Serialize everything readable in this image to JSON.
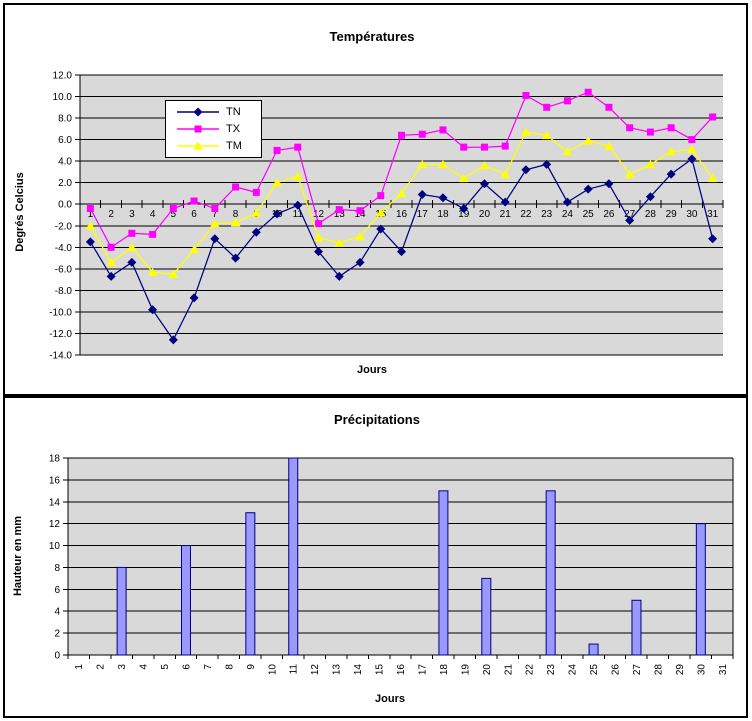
{
  "window": {
    "background": "#ffffff"
  },
  "chart_data": [
    {
      "type": "line",
      "title": "Températures",
      "xlabel": "Jours",
      "ylabel": "Degrés Celcius",
      "x": [
        1,
        2,
        3,
        4,
        5,
        6,
        7,
        8,
        9,
        10,
        11,
        12,
        13,
        14,
        15,
        16,
        17,
        18,
        19,
        20,
        21,
        22,
        23,
        24,
        25,
        26,
        27,
        28,
        29,
        30,
        31
      ],
      "ylim": [
        -14,
        12
      ],
      "ytick_step": 2,
      "ytick_format": "0.0",
      "grid": true,
      "plot_bg": "#d9d9d9",
      "gridline_color": "#000000",
      "legend_position": "upper-left-inside",
      "series": [
        {
          "name": "TN",
          "color": "#000080",
          "marker": "diamond",
          "values": [
            -3.5,
            -6.7,
            -5.4,
            -9.8,
            -12.6,
            -8.7,
            -3.2,
            -5.0,
            -2.6,
            -0.9,
            -0.1,
            -4.4,
            -6.7,
            -5.4,
            -2.3,
            -4.4,
            0.9,
            0.6,
            -0.4,
            1.9,
            0.2,
            3.2,
            3.7,
            0.2,
            1.4,
            1.9,
            -1.5,
            0.7,
            2.8,
            4.2,
            -3.2
          ]
        },
        {
          "name": "TX",
          "color": "#ff00ff",
          "marker": "square",
          "values": [
            -0.4,
            -4.0,
            -2.7,
            -2.8,
            -0.4,
            0.3,
            -0.4,
            1.6,
            1.1,
            5.0,
            5.3,
            -1.8,
            -0.5,
            -0.6,
            0.8,
            6.4,
            6.5,
            6.9,
            5.3,
            5.3,
            5.4,
            10.1,
            9.0,
            9.6,
            10.4,
            9.0,
            7.1,
            6.7,
            7.1,
            6.0,
            8.1
          ]
        },
        {
          "name": "TM",
          "color": "#ffff00",
          "marker": "triangle",
          "values": [
            -2.0,
            -5.4,
            -4.0,
            -6.3,
            -6.5,
            -4.2,
            -1.8,
            -1.7,
            -0.8,
            2.0,
            2.6,
            -3.1,
            -3.6,
            -3.0,
            -0.8,
            1.0,
            3.7,
            3.7,
            2.4,
            3.6,
            2.8,
            6.7,
            6.4,
            4.9,
            5.9,
            5.4,
            2.8,
            3.7,
            4.9,
            5.1,
            2.4
          ]
        }
      ]
    },
    {
      "type": "bar",
      "title": "Précipitations",
      "xlabel": "Jours",
      "ylabel": "Hauteur en mm",
      "categories": [
        1,
        2,
        3,
        4,
        5,
        6,
        7,
        8,
        9,
        10,
        11,
        12,
        13,
        14,
        15,
        16,
        17,
        18,
        19,
        20,
        21,
        22,
        23,
        24,
        25,
        26,
        27,
        28,
        29,
        30,
        31
      ],
      "values": [
        0,
        0,
        8,
        0,
        0,
        10,
        0,
        0,
        13,
        0,
        18,
        0,
        0,
        0,
        0,
        0,
        0,
        15,
        0,
        7,
        0,
        0,
        15,
        0,
        1,
        0,
        5,
        0,
        0,
        12,
        0
      ],
      "ylim": [
        0,
        18
      ],
      "ytick_step": 2,
      "grid": true,
      "plot_bg": "#d9d9d9",
      "gridline_color": "#000000",
      "bar_color": "#9999ff",
      "bar_border": "#000080",
      "legend_position": "none"
    }
  ]
}
